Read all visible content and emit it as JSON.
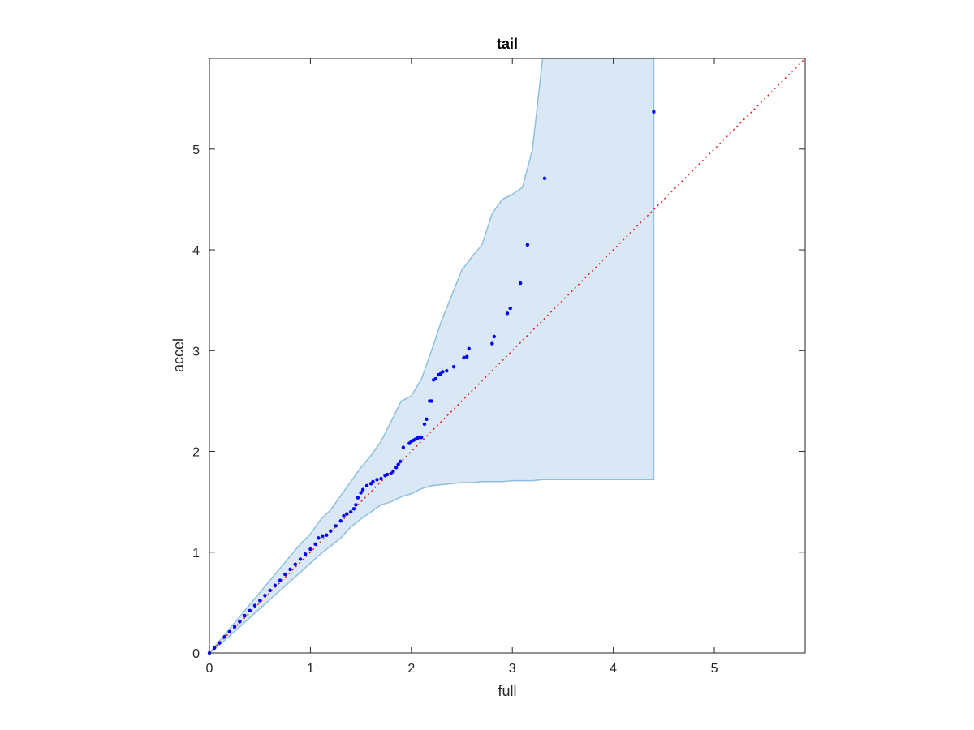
{
  "chart_data": {
    "type": "scatter",
    "title": "tail",
    "xlabel": "full",
    "ylabel": "accel",
    "xlim": [
      0,
      5.9
    ],
    "ylim": [
      0,
      5.9
    ],
    "xticks": [
      "0",
      "1",
      "2",
      "3",
      "4",
      "5"
    ],
    "yticks": [
      "0",
      "1",
      "2",
      "3",
      "4",
      "5"
    ],
    "grid": false,
    "colors": {
      "points": "#0000ff",
      "reference_line": "#e41a1c",
      "band_fill": "#d9e8f4",
      "band_edge": "#8ebfdf",
      "axes": "#262626"
    },
    "reference_line": {
      "x": [
        0,
        5.9
      ],
      "y": [
        0,
        5.9
      ],
      "style": "dotted"
    },
    "band": {
      "x": [
        0,
        0.1,
        0.2,
        0.3,
        0.4,
        0.5,
        0.6,
        0.7,
        0.8,
        0.9,
        1.0,
        1.1,
        1.2,
        1.3,
        1.4,
        1.5,
        1.6,
        1.7,
        1.8,
        1.9,
        2.0,
        2.1,
        2.2,
        2.3,
        2.4,
        2.5,
        2.6,
        2.7,
        2.8,
        2.9,
        3.0,
        3.1,
        3.2,
        3.3,
        3.4,
        3.5,
        3.6,
        3.7,
        3.8,
        3.9,
        4.0,
        4.1,
        4.2,
        4.3,
        4.4
      ],
      "upper": [
        0,
        0.12,
        0.24,
        0.36,
        0.48,
        0.6,
        0.72,
        0.84,
        0.96,
        1.08,
        1.18,
        1.32,
        1.42,
        1.56,
        1.7,
        1.84,
        1.96,
        2.1,
        2.3,
        2.5,
        2.55,
        2.72,
        3.0,
        3.3,
        3.55,
        3.8,
        3.93,
        4.05,
        4.36,
        4.5,
        4.55,
        4.62,
        5.0,
        5.9,
        5.9,
        5.9,
        5.9,
        5.9,
        5.9,
        5.9,
        5.9,
        5.9,
        5.9,
        5.9,
        5.9
      ],
      "lower": [
        0,
        0.08,
        0.17,
        0.26,
        0.35,
        0.44,
        0.53,
        0.62,
        0.71,
        0.8,
        0.89,
        0.98,
        1.06,
        1.14,
        1.25,
        1.33,
        1.4,
        1.47,
        1.5,
        1.55,
        1.58,
        1.63,
        1.66,
        1.67,
        1.68,
        1.69,
        1.69,
        1.7,
        1.7,
        1.7,
        1.71,
        1.71,
        1.71,
        1.72,
        1.72,
        1.72,
        1.72,
        1.72,
        1.72,
        1.72,
        1.72,
        1.72,
        1.72,
        1.72,
        1.72
      ]
    },
    "points": {
      "x": [
        0.0,
        0.05,
        0.1,
        0.15,
        0.2,
        0.25,
        0.3,
        0.35,
        0.4,
        0.45,
        0.5,
        0.55,
        0.6,
        0.65,
        0.7,
        0.75,
        0.8,
        0.85,
        0.9,
        0.95,
        1.0,
        1.05,
        1.08,
        1.12,
        1.16,
        1.2,
        1.25,
        1.3,
        1.33,
        1.36,
        1.4,
        1.43,
        1.45,
        1.47,
        1.5,
        1.52,
        1.56,
        1.6,
        1.62,
        1.66,
        1.7,
        1.74,
        1.76,
        1.8,
        1.82,
        1.85,
        1.87,
        1.89,
        1.92,
        1.98,
        2.0,
        2.02,
        2.04,
        2.06,
        2.07,
        2.09,
        2.1,
        2.13,
        2.15,
        2.18,
        2.2,
        2.22,
        2.24,
        2.27,
        2.29,
        2.31,
        2.35,
        2.42,
        2.52,
        2.55,
        2.57,
        2.8,
        2.82,
        2.95,
        2.98,
        3.08,
        3.15,
        3.32,
        4.4
      ],
      "y": [
        0.0,
        0.05,
        0.1,
        0.16,
        0.21,
        0.26,
        0.31,
        0.37,
        0.42,
        0.47,
        0.52,
        0.57,
        0.62,
        0.67,
        0.72,
        0.78,
        0.83,
        0.88,
        0.93,
        0.98,
        1.03,
        1.08,
        1.14,
        1.16,
        1.17,
        1.21,
        1.26,
        1.31,
        1.36,
        1.38,
        1.4,
        1.43,
        1.47,
        1.54,
        1.59,
        1.62,
        1.66,
        1.68,
        1.7,
        1.72,
        1.73,
        1.76,
        1.77,
        1.78,
        1.8,
        1.84,
        1.87,
        1.9,
        2.04,
        2.08,
        2.1,
        2.11,
        2.12,
        2.13,
        2.14,
        2.14,
        2.14,
        2.27,
        2.32,
        2.5,
        2.5,
        2.71,
        2.72,
        2.76,
        2.77,
        2.79,
        2.8,
        2.84,
        2.93,
        2.94,
        3.02,
        3.07,
        3.14,
        3.37,
        3.42,
        3.67,
        4.05,
        4.71,
        5.37
      ]
    }
  }
}
